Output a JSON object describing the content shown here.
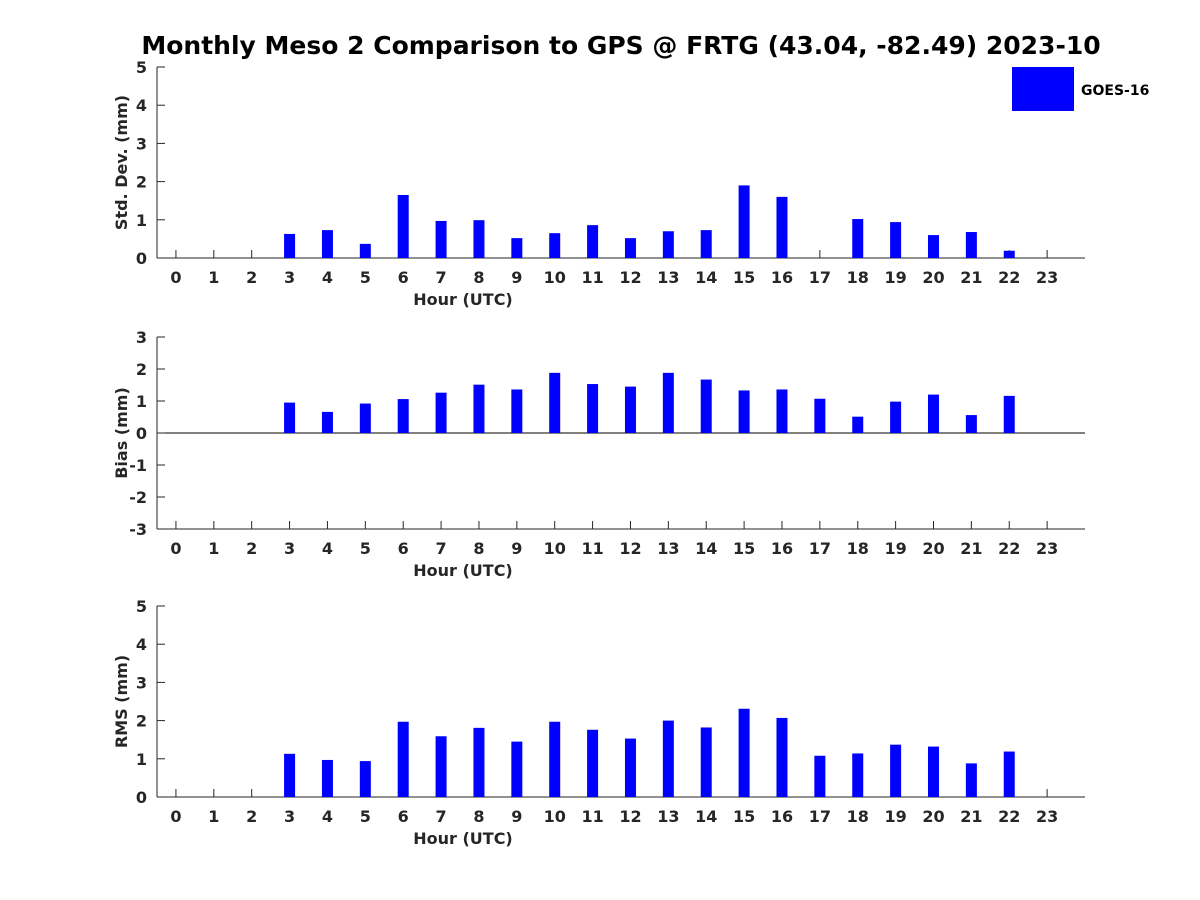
{
  "title": "Monthly Meso 2 Comparison to GPS @ FRTG (43.04, -82.49) 2023-10",
  "colors": {
    "bar": "#0000ff",
    "axis": "#262626"
  },
  "legend": {
    "label": "GOES-16",
    "placement": "top-right"
  },
  "chart_data": [
    {
      "type": "bar",
      "title": "Monthly Meso 2 Comparison to GPS @ FRTG (43.04, -82.49) 2023-10",
      "xlabel": "Hour (UTC)",
      "ylabel": "Std. Dev. (mm)",
      "categories": [
        "0",
        "1",
        "2",
        "3",
        "4",
        "5",
        "6",
        "7",
        "8",
        "9",
        "10",
        "11",
        "12",
        "13",
        "14",
        "15",
        "16",
        "17",
        "18",
        "19",
        "20",
        "21",
        "22",
        "23"
      ],
      "ylim": [
        0,
        5
      ],
      "yticks": [
        "0",
        "1",
        "2",
        "3",
        "4",
        "5"
      ],
      "grid": false,
      "series": [
        {
          "name": "GOES-16",
          "values": [
            null,
            null,
            null,
            0.63,
            0.73,
            0.37,
            1.65,
            0.97,
            0.99,
            0.52,
            0.65,
            0.86,
            0.52,
            0.7,
            0.73,
            1.9,
            1.6,
            null,
            1.02,
            0.94,
            0.6,
            0.68,
            0.19,
            null
          ]
        }
      ]
    },
    {
      "type": "bar",
      "xlabel": "Hour (UTC)",
      "ylabel": "Bias (mm)",
      "categories": [
        "0",
        "1",
        "2",
        "3",
        "4",
        "5",
        "6",
        "7",
        "8",
        "9",
        "10",
        "11",
        "12",
        "13",
        "14",
        "15",
        "16",
        "17",
        "18",
        "19",
        "20",
        "21",
        "22",
        "23"
      ],
      "ylim": [
        -3,
        3
      ],
      "yticks": [
        "-3",
        "-2",
        "-1",
        "0",
        "1",
        "2",
        "3"
      ],
      "grid": false,
      "series": [
        {
          "name": "GOES-16",
          "values": [
            null,
            null,
            null,
            0.95,
            0.66,
            0.92,
            1.06,
            1.26,
            1.51,
            1.36,
            1.88,
            1.53,
            1.45,
            1.88,
            1.67,
            1.33,
            1.36,
            1.07,
            0.51,
            0.98,
            1.2,
            0.56,
            1.16,
            null
          ]
        }
      ]
    },
    {
      "type": "bar",
      "xlabel": "Hour (UTC)",
      "ylabel": "RMS (mm)",
      "categories": [
        "0",
        "1",
        "2",
        "3",
        "4",
        "5",
        "6",
        "7",
        "8",
        "9",
        "10",
        "11",
        "12",
        "13",
        "14",
        "15",
        "16",
        "17",
        "18",
        "19",
        "20",
        "21",
        "22",
        "23"
      ],
      "ylim": [
        0,
        5
      ],
      "yticks": [
        "0",
        "1",
        "2",
        "3",
        "4",
        "5"
      ],
      "grid": false,
      "series": [
        {
          "name": "GOES-16",
          "values": [
            null,
            null,
            null,
            1.13,
            0.97,
            0.94,
            1.97,
            1.59,
            1.81,
            1.45,
            1.97,
            1.76,
            1.53,
            2.0,
            1.82,
            2.31,
            2.07,
            1.08,
            1.14,
            1.37,
            1.32,
            0.88,
            1.19,
            null
          ]
        }
      ]
    }
  ]
}
